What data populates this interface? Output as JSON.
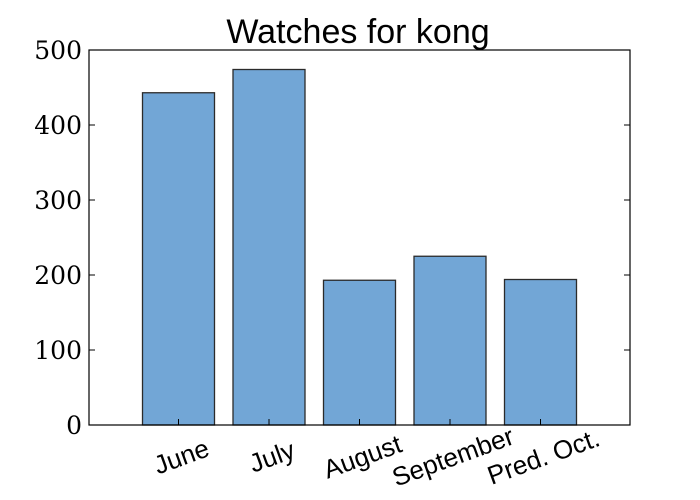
{
  "chart_data": {
    "type": "bar",
    "title": "Watches for kong",
    "categories": [
      "June",
      "July",
      "August",
      "September",
      "Pred. Oct."
    ],
    "values": [
      443,
      474,
      193,
      225,
      194
    ],
    "xlabel": "",
    "ylabel": "",
    "ylim": [
      0,
      500
    ],
    "yticks": [
      "0",
      "100",
      "200",
      "300",
      "400",
      "500"
    ],
    "grid": false,
    "legend": "none",
    "bar_color": "#72a6d6",
    "edge_color": "#2b2b2b",
    "xtick_rotation_deg": -20
  }
}
